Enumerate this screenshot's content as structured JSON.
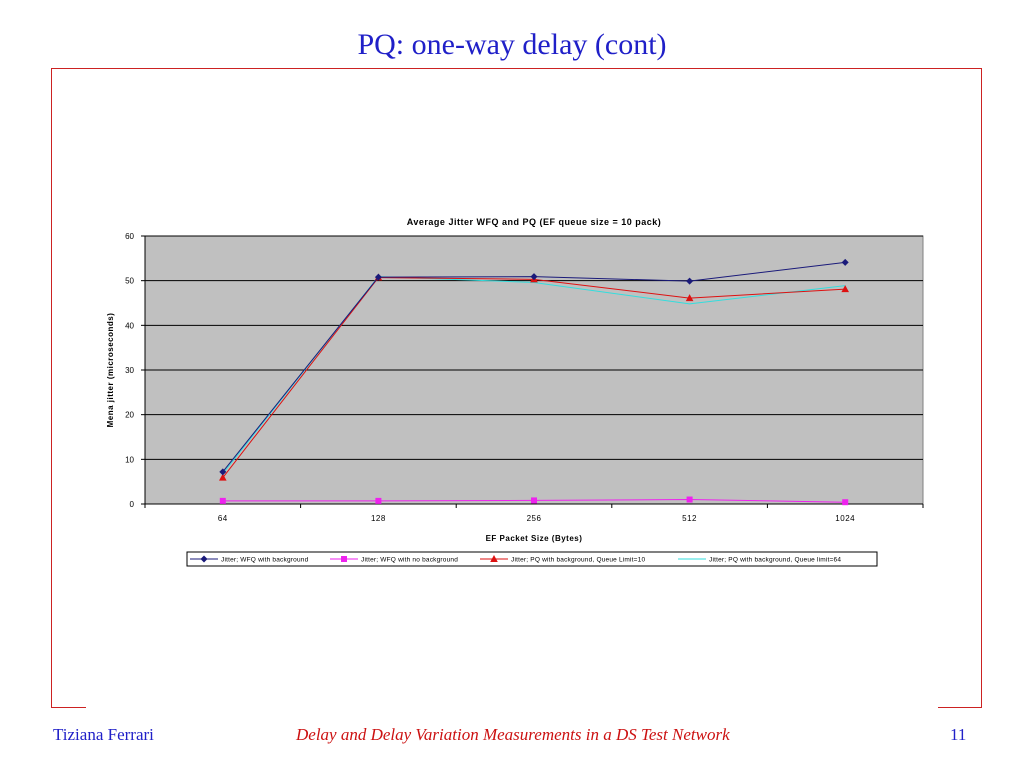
{
  "slide": {
    "title": "PQ: one-way delay (cont)",
    "footer_author": "Tiziana Ferrari",
    "footer_center": "Delay and Delay Variation Measurements in a DS Test Network",
    "page_number": "11"
  },
  "colors": {
    "title": "#2020c8",
    "frame": "#cc2222",
    "footer_center": "#cc1111",
    "plot_bg": "#c0c0c0"
  },
  "chart_data": {
    "type": "line",
    "title": "Average Jitter WFQ and PQ (EF queue size = 10 pack)",
    "xlabel": "EF Packet Size (Bytes)",
    "ylabel": "Mena jitter (microseconds)",
    "categories": [
      "64",
      "128",
      "256",
      "512",
      "1024"
    ],
    "ylim": [
      0,
      60
    ],
    "yticks": [
      0,
      10,
      20,
      30,
      40,
      50,
      60
    ],
    "grid": true,
    "legend_position": "bottom",
    "series": [
      {
        "name": "Jitter; WFQ with background",
        "color": "#1a1a7a",
        "marker": "diamond",
        "values": [
          7.2,
          50.8,
          50.9,
          49.9,
          54.1
        ]
      },
      {
        "name": "Jitter; WFQ with no background",
        "color": "#ee22ee",
        "marker": "square",
        "values": [
          0.7,
          0.7,
          0.8,
          1.0,
          0.4
        ]
      },
      {
        "name": "Jitter; PQ with background, Queue Limit=10",
        "color": "#dd1111",
        "marker": "triangle",
        "values": [
          5.9,
          50.7,
          50.3,
          46.1,
          48.1
        ]
      },
      {
        "name": "Jitter; PQ with background, Queue limit=64",
        "color": "#33dddd",
        "marker": "none",
        "values": [
          6.8,
          50.9,
          49.6,
          44.8,
          48.9
        ]
      }
    ]
  }
}
